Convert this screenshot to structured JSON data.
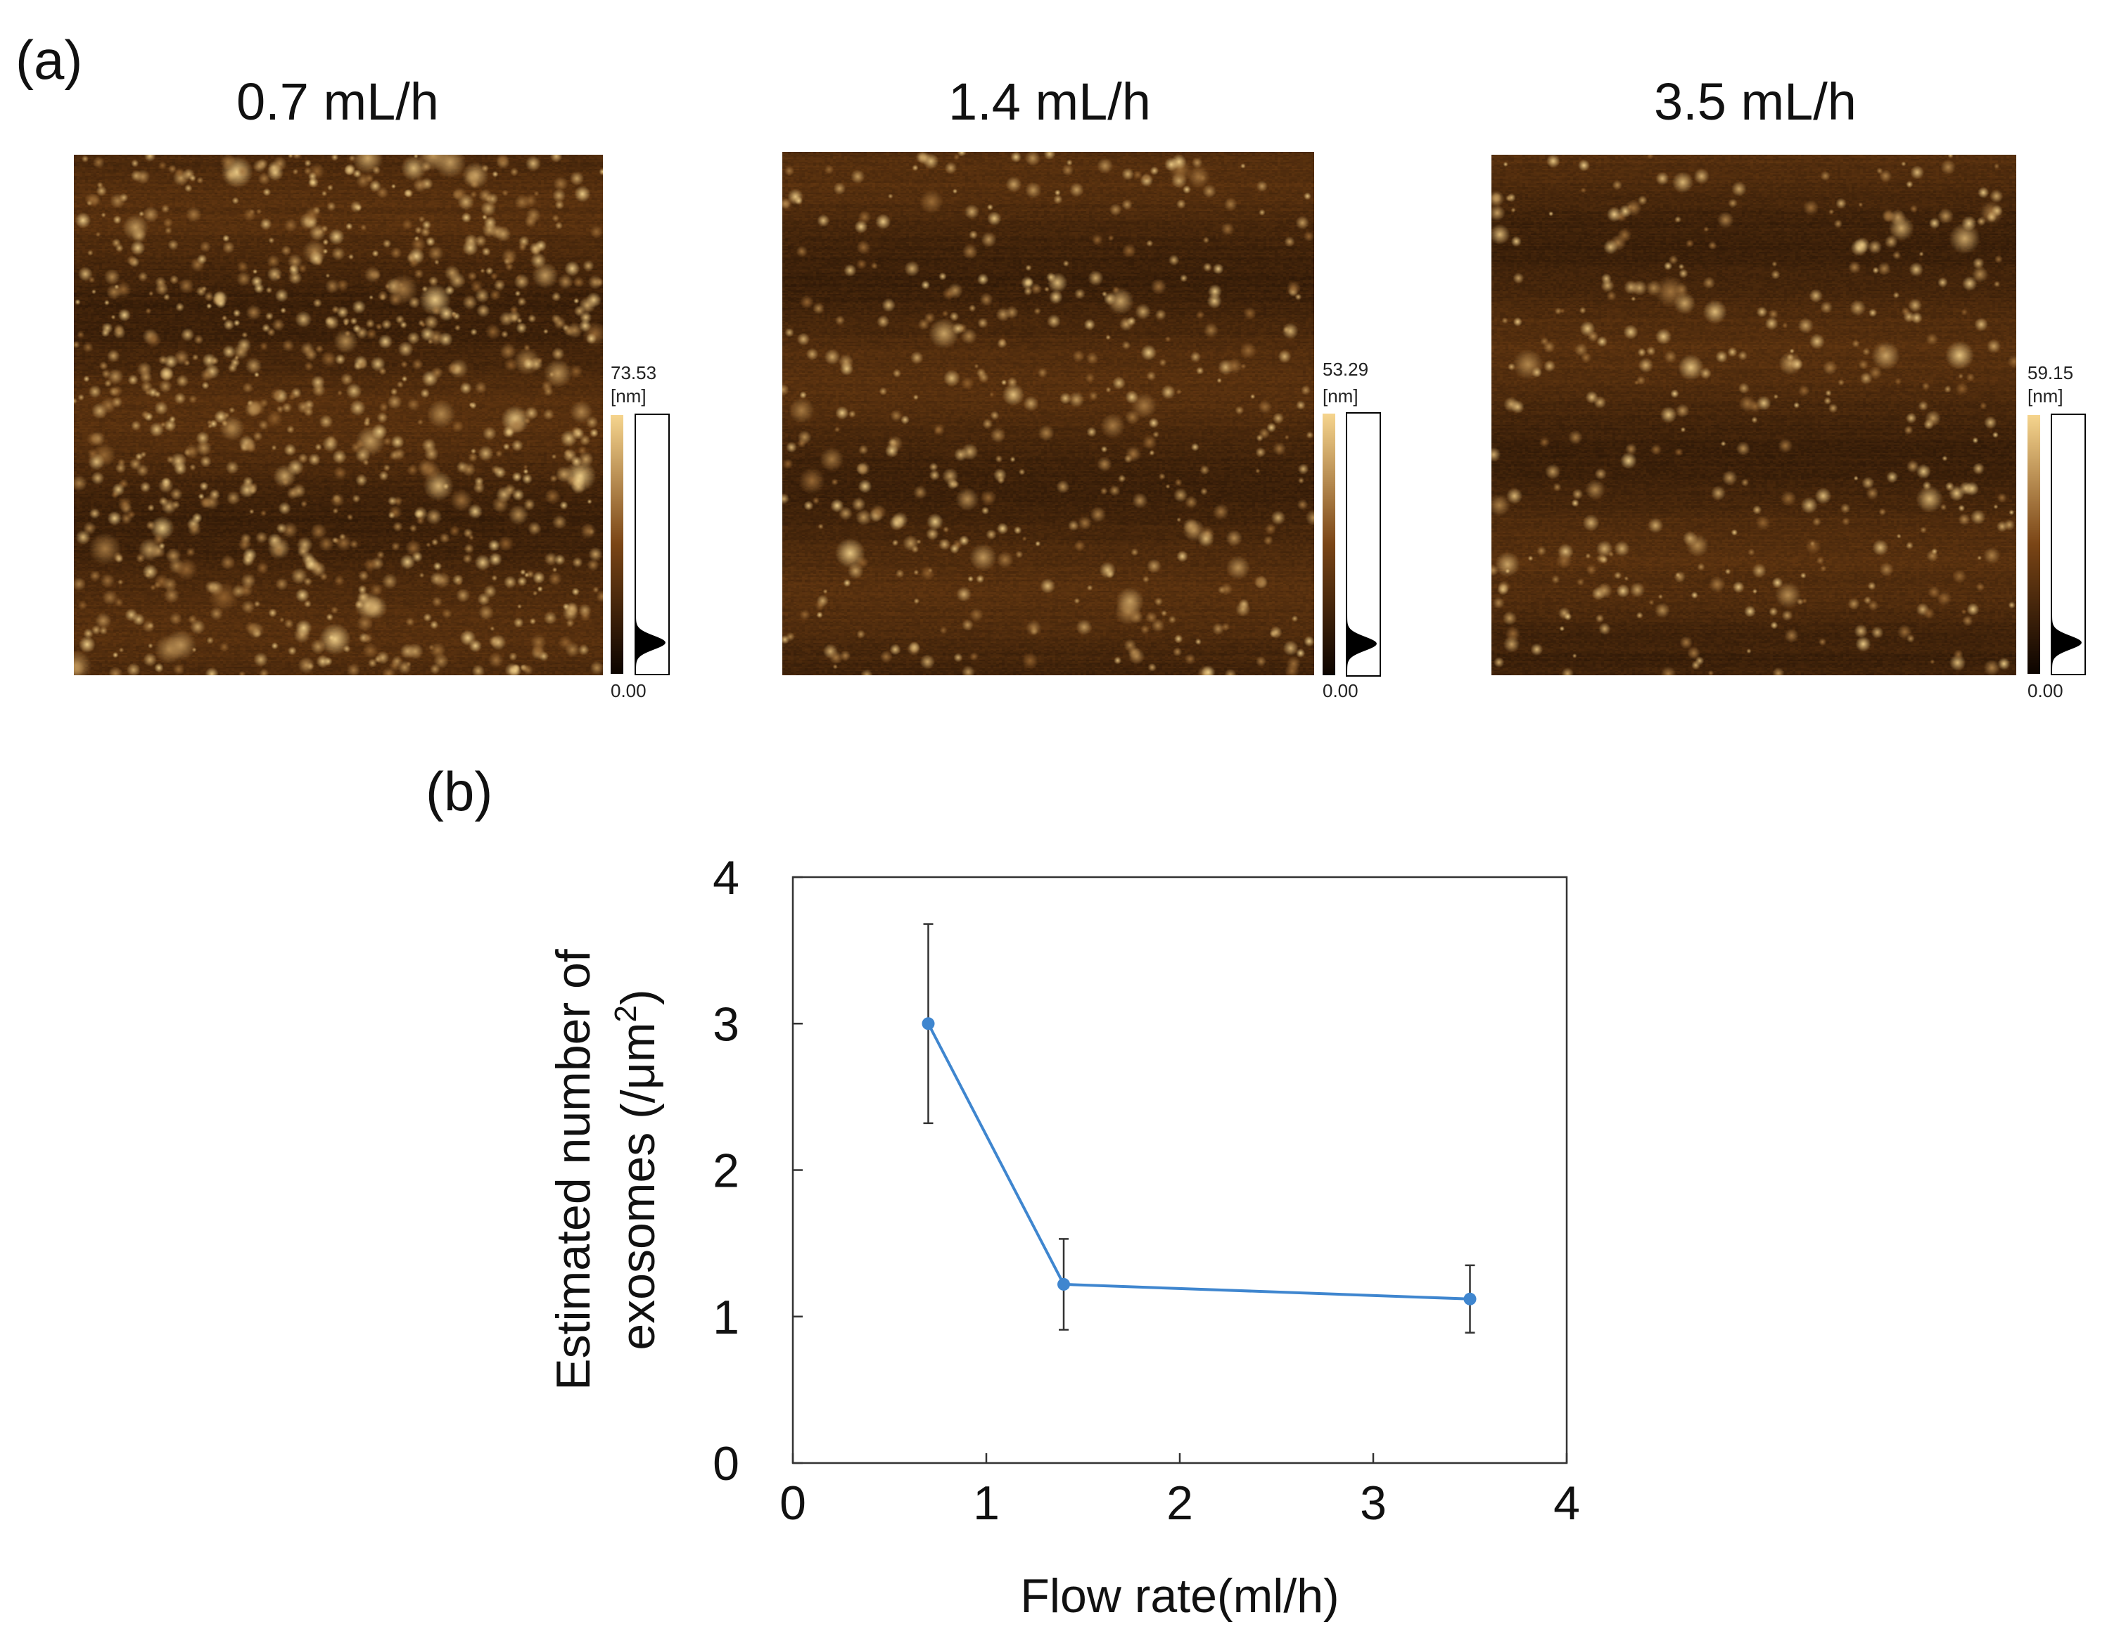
{
  "panel_a_label": "(a)",
  "panel_b_label": "(b)",
  "afm_panels": [
    {
      "title": "0.7 mL/h",
      "scale_max": "73.53",
      "scale_unit": "[nm]",
      "scale_min": "0.00",
      "particle_density": 1.0
    },
    {
      "title": "1.4 mL/h",
      "scale_max": "53.29",
      "scale_unit": "[nm]",
      "scale_min": "0.00",
      "particle_density": 0.45
    },
    {
      "title": "3.5 mL/h",
      "scale_max": "59.15",
      "scale_unit": "[nm]",
      "scale_min": "0.00",
      "particle_density": 0.4
    }
  ],
  "colors": {
    "afm_dark": "#3a1e08",
    "afm_mid": "#7a4516",
    "afm_bright": "#f6d58e",
    "series": "#3f86cf",
    "errorbar": "#333333"
  },
  "chart_data": {
    "type": "line",
    "title": "",
    "xlabel": "Flow rate(ml/h)",
    "ylabel_line1": "Estimated number of",
    "ylabel_line2_prefix": "exosomes (/μm",
    "ylabel_line2_sup": "2",
    "ylabel_line2_suffix": ")",
    "xlim": [
      0,
      4
    ],
    "ylim": [
      0,
      4
    ],
    "xticks": [
      "0",
      "1",
      "2",
      "3",
      "4"
    ],
    "yticks": [
      "0",
      "1",
      "2",
      "3",
      "4"
    ],
    "grid": false,
    "legend": "none",
    "series": [
      {
        "x": [
          0.7,
          1.4,
          3.5
        ],
        "y": [
          3.0,
          1.22,
          1.12
        ],
        "err": [
          0.68,
          0.31,
          0.23
        ]
      }
    ]
  }
}
